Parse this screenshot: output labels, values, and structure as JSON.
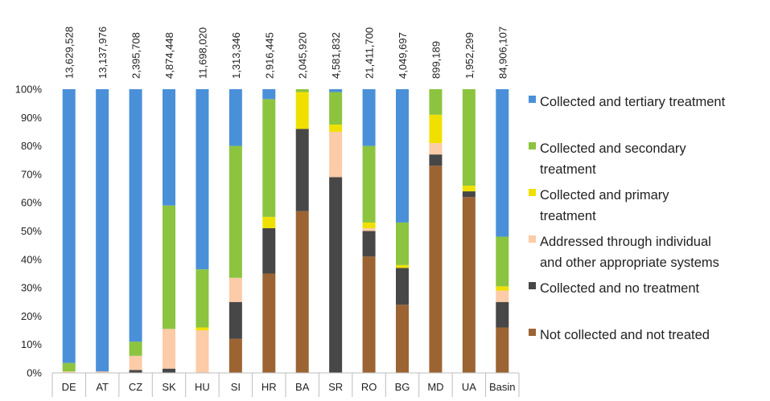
{
  "chart_data": {
    "type": "bar",
    "stacked": true,
    "normalized": true,
    "title": "",
    "xlabel": "",
    "ylabel": "",
    "ylim": [
      0,
      100
    ],
    "yticks": [
      "0%",
      "10%",
      "20%",
      "30%",
      "40%",
      "50%",
      "60%",
      "70%",
      "80%",
      "90%",
      "100%"
    ],
    "grid": false,
    "legend_position": "right",
    "categories": [
      "DE",
      "AT",
      "CZ",
      "SK",
      "HU",
      "SI",
      "HR",
      "BA",
      "SR",
      "RO",
      "BG",
      "MD",
      "UA",
      "Basin"
    ],
    "top_labels": [
      "13,629,528",
      "13,137,976",
      "2,395,708",
      "4,874,448",
      "11,698,020",
      "1,313,346",
      "2,916,445",
      "2,045,920",
      "4,581,832",
      "21,411,700",
      "4,049,697",
      "899,189",
      "1,952,299",
      "84,906,107"
    ],
    "series": [
      {
        "name": "Not collected and not treated",
        "color": "#9C6432",
        "values": [
          0,
          0,
          0,
          0,
          0,
          12,
          35,
          57,
          0,
          41,
          24,
          73,
          62,
          16
        ]
      },
      {
        "name": "Collected and no treatment",
        "color": "#474747",
        "values": [
          0,
          0,
          1,
          1.5,
          0,
          13,
          16,
          29,
          69,
          9,
          13,
          4,
          2,
          9
        ]
      },
      {
        "name": "Addressed through individual and other appropriate systems",
        "color": "#FCCBA8",
        "values": [
          0.5,
          0.5,
          5,
          14,
          15,
          8.5,
          0,
          0,
          16,
          1,
          0,
          4,
          0,
          4
        ]
      },
      {
        "name": "Collected and primary treatment",
        "color": "#F0E000",
        "values": [
          0,
          0,
          0,
          0,
          1,
          0,
          4,
          13,
          2.5,
          2,
          1,
          10,
          2,
          1.5
        ]
      },
      {
        "name": "Collected and secondary treatment",
        "color": "#8CC43F",
        "values": [
          3,
          0,
          5,
          43.5,
          20.5,
          46.5,
          41.5,
          1,
          11.5,
          27,
          15,
          9,
          34,
          17.5
        ]
      },
      {
        "name": "Collected and tertiary treatment",
        "color": "#4A90D9",
        "values": [
          96.5,
          99.5,
          89,
          41,
          63.5,
          20,
          3.5,
          0,
          1,
          20,
          47,
          0,
          0,
          52
        ]
      }
    ],
    "legend": [
      {
        "lines": [
          "Collected and tertiary treatment"
        ],
        "color": "#4A90D9"
      },
      {
        "lines": [
          "Collected and secondary",
          "treatment"
        ],
        "color": "#8CC43F"
      },
      {
        "lines": [
          "Collected and primary",
          "treatment"
        ],
        "color": "#F0E000"
      },
      {
        "lines": [
          "Addressed through individual",
          "and other appropriate systems"
        ],
        "color": "#FCCBA8"
      },
      {
        "lines": [
          "Collected and no treatment"
        ],
        "color": "#474747"
      },
      {
        "lines": [
          "Not collected and not treated"
        ],
        "color": "#9C6432"
      }
    ]
  }
}
